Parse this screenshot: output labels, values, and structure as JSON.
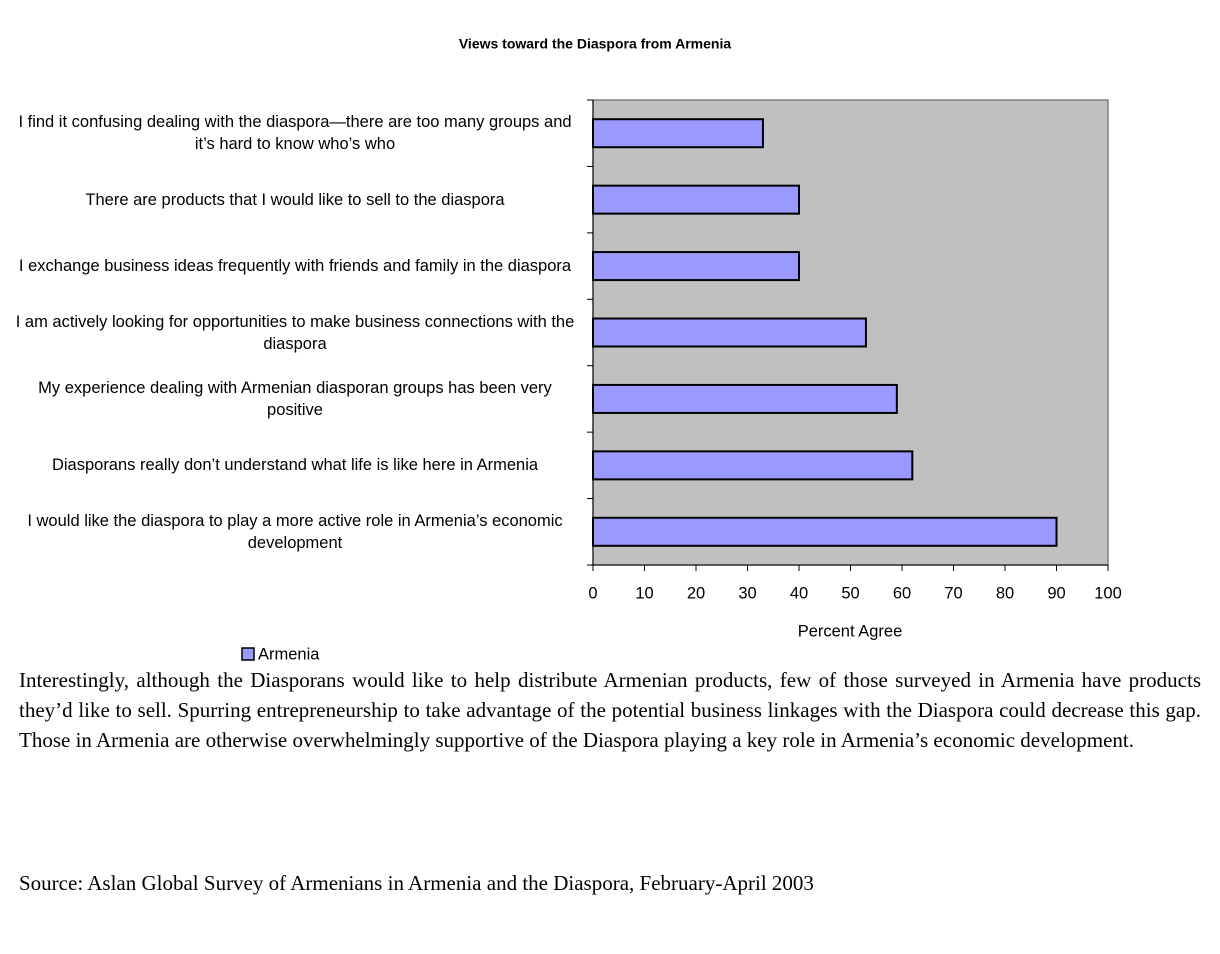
{
  "chart_data": {
    "type": "hbar",
    "title": "Views toward the Diaspora from Armenia",
    "categories": [
      "I find it confusing dealing with the diaspora—there are too many groups and it’s hard to know who’s who",
      "There are products that I would like to sell to the diaspora",
      "I exchange business ideas frequently with friends and family in the diaspora",
      "I am actively looking for opportunities to make business connections with the diaspora",
      "My experience dealing with Armenian diasporan groups has been very positive",
      "Diasporans really don’t understand what life is like here in Armenia",
      "I would like the diaspora to play a more active role in Armenia’s economic development"
    ],
    "series": [
      {
        "name": "Armenia",
        "color": "#9999ff",
        "values": [
          33,
          40,
          40,
          53,
          59,
          62,
          90
        ]
      }
    ],
    "xlabel": "Percent Agree",
    "xlim": [
      0,
      100
    ],
    "xticks": [
      0,
      10,
      20,
      30,
      40,
      50,
      60,
      70,
      80,
      90,
      100
    ],
    "background": "#c0c0c0"
  },
  "paragraph": "Interestingly, although the Diasporans would like to help distribute Armenian products, few of those surveyed in Armenia have products they’d like to sell. Spurring entrepreneurship to take advantage of the potential business linkages with the Diaspora could decrease this gap.  Those in Armenia are otherwise overwhelmingly supportive of the Diaspora playing a key role in Armenia’s economic development.",
  "source": "Source: Aslan Global Survey of Armenians in Armenia and the Diaspora, February-April 2003"
}
